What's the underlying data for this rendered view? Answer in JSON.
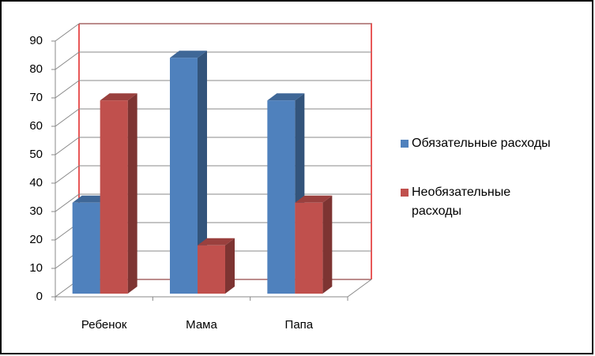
{
  "chart_data": {
    "type": "bar3d",
    "categories": [
      "Ребенок",
      "Мама",
      "Папа"
    ],
    "series": [
      {
        "name": "Обязательные расходы",
        "color": "#4f81bd",
        "values": [
          32,
          83,
          68
        ]
      },
      {
        "name": "Необязательные расходы",
        "color": "#c0504d",
        "values": [
          68,
          17,
          32
        ]
      }
    ],
    "ylim": [
      0,
      90
    ],
    "yticks": [
      0,
      10,
      20,
      30,
      40,
      50,
      60,
      70,
      80,
      90
    ],
    "grid": true
  }
}
